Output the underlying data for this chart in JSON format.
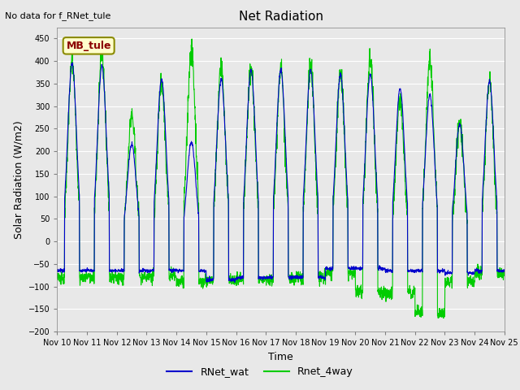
{
  "title": "Net Radiation",
  "ylabel": "Solar Radiation (W/m2)",
  "xlabel": "Time",
  "no_data_text": "No data for f_RNet_tule",
  "site_label": "MB_tule",
  "ylim_min": -200,
  "ylim_max": 475,
  "yticks": [
    -200,
    -150,
    -100,
    -50,
    0,
    50,
    100,
    150,
    200,
    250,
    300,
    350,
    400,
    450
  ],
  "xlim_min": 0,
  "xlim_max": 15,
  "xtick_labels": [
    "Nov 10",
    "Nov 11",
    "Nov 12",
    "Nov 13",
    "Nov 14",
    "Nov 15",
    "Nov 16",
    "Nov 17",
    "Nov 18",
    "Nov 19",
    "Nov 20",
    "Nov 21",
    "Nov 22",
    "Nov 23",
    "Nov 24",
    "Nov 25"
  ],
  "line_blue": "#0000cc",
  "line_green": "#00cc00",
  "legend_entries": [
    "RNet_wat",
    "Rnet_4way"
  ],
  "bg_color": "#e8e8e8",
  "grid_color": "#ffffff",
  "blue_peaks": [
    395,
    390,
    215,
    360,
    220,
    360,
    380,
    380,
    380,
    370,
    370,
    340,
    325,
    260,
    355
  ],
  "green_peaks": [
    400,
    410,
    280,
    355,
    430,
    390,
    385,
    385,
    385,
    375,
    405,
    310,
    405,
    260,
    360
  ],
  "blue_nights": [
    -65,
    -65,
    -65,
    -65,
    -65,
    -85,
    -80,
    -80,
    -80,
    -60,
    -60,
    -65,
    -65,
    -70,
    -65
  ],
  "green_nights": [
    -80,
    -80,
    -80,
    -75,
    -90,
    -85,
    -85,
    -85,
    -80,
    -70,
    -110,
    -115,
    -160,
    -90,
    -70
  ]
}
